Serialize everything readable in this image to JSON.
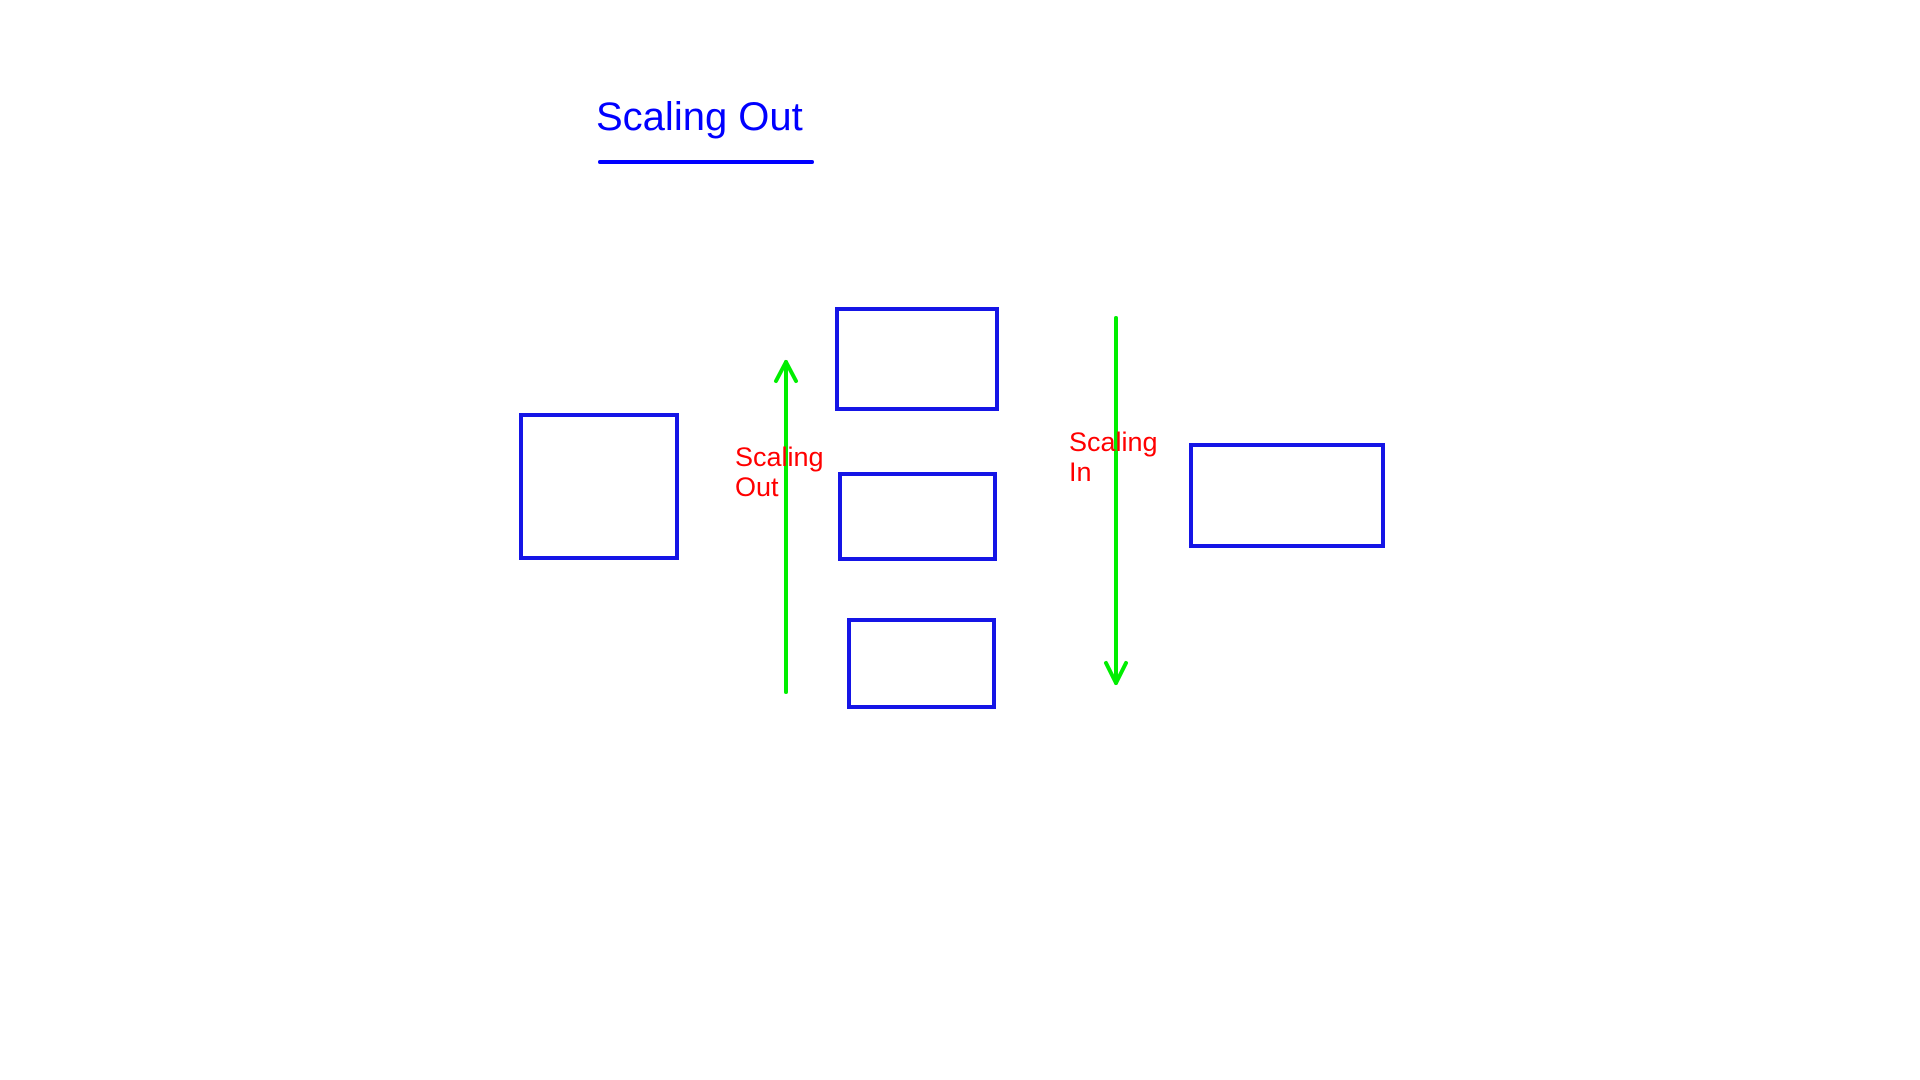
{
  "title": "Scaling Out",
  "labels": {
    "scaling_out": [
      "Scaling",
      "Out"
    ],
    "scaling_in": [
      "Scaling",
      "In"
    ]
  },
  "colors": {
    "title": "#0000ff",
    "box": "#1515e6",
    "arrow": "#00ee00",
    "label": "#ff0000",
    "background": "#ffffff"
  }
}
